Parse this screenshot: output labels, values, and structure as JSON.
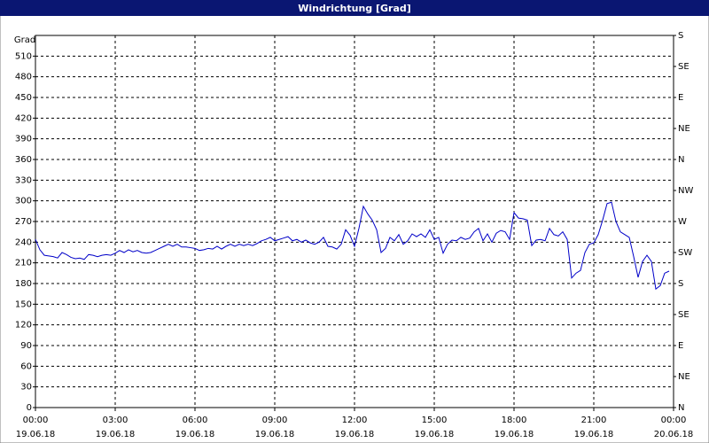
{
  "chart_data": {
    "type": "line",
    "title": "Windrichtung [Grad]",
    "y_label": "Grad",
    "color": "#0000c8",
    "grid": true,
    "xlim": [
      0,
      1440
    ],
    "ylim": [
      0,
      540
    ],
    "y2lim": [
      0,
      540
    ],
    "xticks": [
      {
        "value": 0,
        "label": "00:00"
      },
      {
        "value": 180,
        "label": "03:00"
      },
      {
        "value": 360,
        "label": "06:00"
      },
      {
        "value": 540,
        "label": "09:00"
      },
      {
        "value": 720,
        "label": "12:00"
      },
      {
        "value": 900,
        "label": "15:00"
      },
      {
        "value": 1080,
        "label": "18:00"
      },
      {
        "value": 1260,
        "label": "21:00"
      },
      {
        "value": 1440,
        "label": "00:00"
      }
    ],
    "xtick_dates": [
      "19.06.18",
      "19.06.18",
      "19.06.18",
      "19.06.18",
      "19.06.18",
      "19.06.18",
      "19.06.18",
      "19.06.18",
      "20.06.18"
    ],
    "yticks": [
      0,
      30,
      60,
      90,
      120,
      150,
      180,
      210,
      240,
      270,
      300,
      330,
      360,
      390,
      420,
      450,
      480,
      510
    ],
    "y2ticks": [
      {
        "value": 0,
        "label": "N"
      },
      {
        "value": 45,
        "label": "NE"
      },
      {
        "value": 90,
        "label": "E"
      },
      {
        "value": 135,
        "label": "SE"
      },
      {
        "value": 180,
        "label": "S"
      },
      {
        "value": 225,
        "label": "SW"
      },
      {
        "value": 270,
        "label": "W"
      },
      {
        "value": 315,
        "label": "NW"
      },
      {
        "value": 360,
        "label": "N"
      },
      {
        "value": 405,
        "label": "NE"
      },
      {
        "value": 450,
        "label": "E"
      },
      {
        "value": 495,
        "label": "SE"
      },
      {
        "value": 540,
        "label": "S"
      }
    ],
    "x": [
      0,
      10,
      20,
      30,
      40,
      50,
      60,
      70,
      80,
      90,
      100,
      110,
      120,
      130,
      140,
      150,
      160,
      170,
      180,
      190,
      200,
      210,
      220,
      230,
      240,
      250,
      260,
      270,
      280,
      290,
      300,
      310,
      320,
      330,
      340,
      350,
      360,
      370,
      380,
      390,
      400,
      410,
      420,
      430,
      440,
      450,
      460,
      470,
      480,
      490,
      500,
      510,
      520,
      530,
      540,
      550,
      560,
      570,
      580,
      590,
      600,
      610,
      620,
      630,
      640,
      650,
      660,
      670,
      680,
      690,
      700,
      710,
      720,
      730,
      740,
      750,
      760,
      770,
      780,
      790,
      800,
      810,
      820,
      830,
      840,
      850,
      860,
      870,
      880,
      890,
      900,
      910,
      920,
      930,
      940,
      950,
      960,
      970,
      980,
      990,
      1000,
      1010,
      1020,
      1030,
      1040,
      1050,
      1060,
      1070,
      1080,
      1090,
      1100,
      1110,
      1120,
      1130,
      1140,
      1150,
      1160,
      1170,
      1180,
      1190,
      1200,
      1210,
      1220,
      1230,
      1240,
      1250,
      1260,
      1270,
      1280,
      1290,
      1300,
      1310,
      1320,
      1330,
      1340,
      1350,
      1360,
      1370,
      1380,
      1390,
      1400,
      1410,
      1420,
      1430
    ],
    "values": [
      244,
      229,
      221,
      220,
      219,
      217,
      225,
      222,
      218,
      216,
      217,
      215,
      222,
      221,
      219,
      221,
      222,
      221,
      224,
      228,
      225,
      229,
      226,
      228,
      225,
      224,
      225,
      228,
      231,
      234,
      237,
      234,
      237,
      233,
      233,
      232,
      231,
      228,
      229,
      231,
      230,
      234,
      230,
      234,
      237,
      234,
      237,
      235,
      237,
      235,
      238,
      242,
      244,
      247,
      242,
      244,
      246,
      248,
      242,
      244,
      240,
      243,
      239,
      237,
      240,
      247,
      234,
      233,
      230,
      237,
      258,
      250,
      234,
      260,
      292,
      281,
      272,
      258,
      225,
      231,
      247,
      242,
      251,
      237,
      242,
      252,
      248,
      252,
      247,
      258,
      244,
      247,
      224,
      237,
      243,
      242,
      247,
      244,
      246,
      255,
      260,
      242,
      252,
      240,
      253,
      257,
      255,
      244,
      283,
      275,
      274,
      272,
      235,
      243,
      244,
      242,
      260,
      251,
      249,
      255,
      244,
      188,
      195,
      199,
      225,
      237,
      239,
      251,
      272,
      296,
      298,
      270,
      255,
      251,
      247,
      219,
      189,
      212,
      221,
      212,
      172,
      177,
      195,
      198
    ]
  }
}
